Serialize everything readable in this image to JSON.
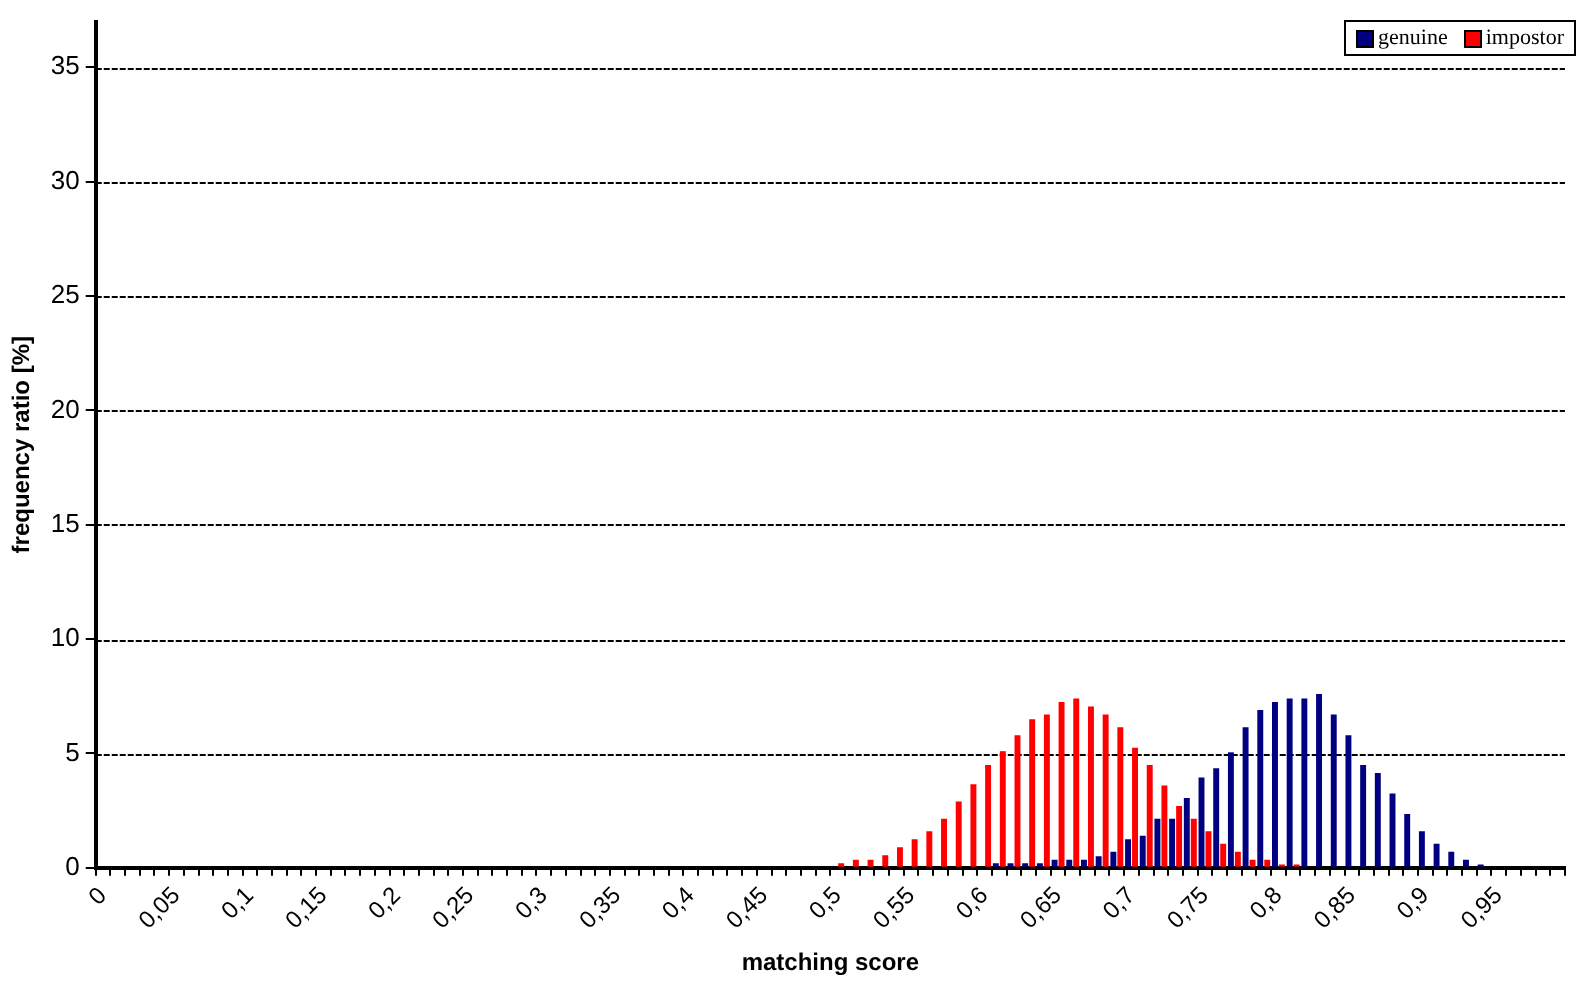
{
  "chart_data": {
    "type": "bar",
    "xlabel": "matching score",
    "ylabel": "frequency ratio [%]",
    "categories": [
      "0",
      null,
      null,
      null,
      null,
      "0,05",
      null,
      null,
      null,
      null,
      "0,1",
      null,
      null,
      null,
      null,
      "0,15",
      null,
      null,
      null,
      null,
      "0,2",
      null,
      null,
      null,
      null,
      "0,25",
      null,
      null,
      null,
      null,
      "0,3",
      null,
      null,
      null,
      null,
      "0,35",
      null,
      null,
      null,
      null,
      "0,4",
      null,
      null,
      null,
      null,
      "0,45",
      null,
      null,
      null,
      null,
      "0,5",
      null,
      null,
      null,
      null,
      "0,55",
      null,
      null,
      null,
      null,
      "0,6",
      null,
      null,
      null,
      null,
      "0,65",
      null,
      null,
      null,
      null,
      "0,7",
      null,
      null,
      null,
      null,
      "0,75",
      null,
      null,
      null,
      null,
      "0,8",
      null,
      null,
      null,
      null,
      "0,85",
      null,
      null,
      null,
      null,
      "0,9",
      null,
      null,
      null,
      null,
      "0,95",
      null,
      null,
      null,
      null
    ],
    "series": [
      {
        "name": "genuine",
        "color": "#000080",
        "values": [
          0,
          0,
          0,
          0,
          0,
          0,
          0,
          0,
          0,
          0,
          0,
          0,
          0,
          0,
          0,
          0,
          0,
          0,
          0,
          0,
          0,
          0,
          0,
          0,
          0,
          0,
          0,
          0,
          0,
          0,
          0,
          0,
          0,
          0,
          0,
          0,
          0,
          0,
          0,
          0,
          0,
          0,
          0,
          0,
          0,
          0,
          0,
          0,
          0,
          0,
          0,
          0,
          0,
          0,
          0,
          0,
          0,
          0,
          0,
          0,
          0,
          0.2,
          0.2,
          0.2,
          0.2,
          0.35,
          0.35,
          0.35,
          0.5,
          0.7,
          1.25,
          1.4,
          2.15,
          2.15,
          3.05,
          3.95,
          4.35,
          5.05,
          6.15,
          6.9,
          7.25,
          7.4,
          7.4,
          7.6,
          6.7,
          5.8,
          4.5,
          4.15,
          3.25,
          2.35,
          1.6,
          1.05,
          0.7,
          0.35,
          0.15,
          0,
          0,
          0,
          0,
          0
        ]
      },
      {
        "name": "impostor",
        "color": "#ff0000",
        "values": [
          0,
          0,
          0,
          0,
          0,
          0,
          0,
          0,
          0,
          0,
          0,
          0,
          0,
          0,
          0,
          0,
          0,
          0,
          0,
          0,
          0,
          0,
          0,
          0,
          0,
          0,
          0,
          0,
          0,
          0,
          0,
          0,
          0,
          0,
          0,
          0,
          0,
          0,
          0,
          0,
          0,
          0,
          0,
          0,
          0,
          0,
          0,
          0,
          0,
          0,
          0.2,
          0.35,
          0.35,
          0.55,
          0.9,
          1.25,
          1.6,
          2.15,
          2.9,
          3.65,
          4.5,
          5.1,
          5.8,
          6.5,
          6.7,
          7.25,
          7.4,
          7.05,
          6.7,
          6.15,
          5.25,
          4.5,
          3.6,
          2.7,
          2.15,
          1.6,
          1.05,
          0.7,
          0.35,
          0.35,
          0.15,
          0.15,
          0,
          0,
          0,
          0,
          0,
          0,
          0,
          0,
          0,
          0,
          0,
          0,
          0,
          0,
          0,
          0,
          0,
          0
        ]
      }
    ],
    "ylim": [
      0,
      37
    ],
    "yticks": [
      0,
      5,
      10,
      15,
      20,
      25,
      30,
      35
    ],
    "grid": "y",
    "legend": "top right"
  }
}
